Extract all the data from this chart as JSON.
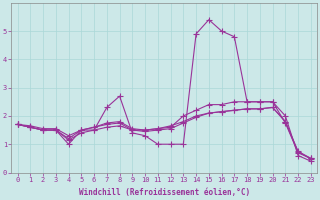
{
  "xlabel": "Windchill (Refroidissement éolien,°C)",
  "background_color": "#cce8e8",
  "grid_color": "#aad8d8",
  "line_color": "#993399",
  "xlim": [
    -0.5,
    23.5
  ],
  "ylim": [
    0,
    6
  ],
  "xticks": [
    0,
    1,
    2,
    3,
    4,
    5,
    6,
    7,
    8,
    9,
    10,
    11,
    12,
    13,
    14,
    15,
    16,
    17,
    18,
    19,
    20,
    21,
    22,
    23
  ],
  "yticks": [
    0,
    1,
    2,
    3,
    4,
    5
  ],
  "series": [
    [
      1.7,
      1.6,
      1.5,
      1.5,
      1.0,
      1.5,
      1.5,
      2.3,
      2.7,
      1.4,
      1.3,
      1.0,
      1.0,
      1.0,
      4.9,
      5.4,
      5.0,
      4.8,
      2.5,
      2.5,
      2.5,
      2.0,
      0.6,
      0.4
    ],
    [
      1.7,
      1.6,
      1.5,
      1.5,
      1.2,
      1.5,
      1.6,
      1.7,
      1.75,
      1.5,
      1.5,
      1.55,
      1.6,
      2.0,
      2.2,
      2.4,
      2.4,
      2.5,
      2.5,
      2.5,
      2.5,
      1.75,
      0.7,
      0.5
    ],
    [
      1.7,
      1.65,
      1.55,
      1.55,
      1.3,
      1.5,
      1.6,
      1.75,
      1.8,
      1.55,
      1.5,
      1.55,
      1.65,
      1.8,
      2.0,
      2.1,
      2.15,
      2.2,
      2.25,
      2.25,
      2.3,
      1.8,
      0.75,
      0.5
    ],
    [
      1.7,
      1.6,
      1.5,
      1.5,
      1.15,
      1.4,
      1.5,
      1.6,
      1.65,
      1.5,
      1.45,
      1.5,
      1.55,
      1.75,
      1.95,
      2.1,
      2.15,
      2.2,
      2.25,
      2.25,
      2.3,
      1.8,
      0.72,
      0.48
    ]
  ],
  "marker": "+",
  "markersize": 4,
  "linewidth": 0.8,
  "tick_fontsize": 5,
  "xlabel_fontsize": 5.5
}
